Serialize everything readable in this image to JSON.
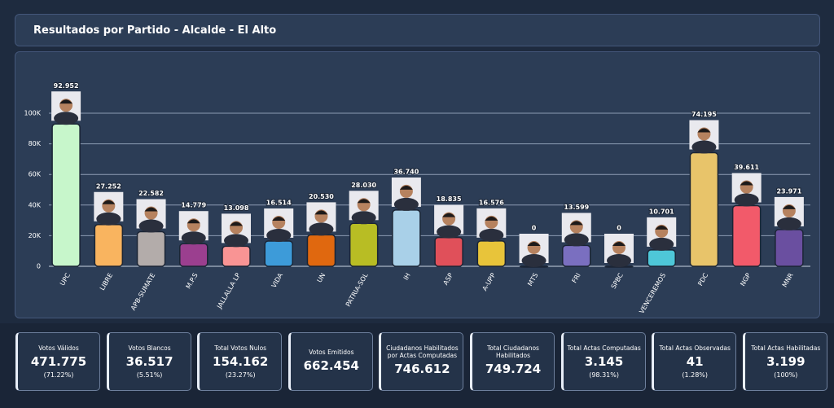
{
  "header": {
    "title": "Resultados por Partido - Alcalde - El Alto"
  },
  "chart_data": {
    "type": "bar",
    "categories": [
      "UPC",
      "LIBRE",
      "APB-SUMATE",
      "M.P.S",
      "JALLALLA LP",
      "VIDA",
      "UN",
      "PATRIA-SOL",
      "IH",
      "ASP",
      "A-UPP",
      "MTS",
      "FRI",
      "SPBC",
      "VENCEREMOS",
      "PDC",
      "NGP",
      "MNR"
    ],
    "values": [
      92952,
      27252,
      22582,
      14779,
      13098,
      16514,
      20530,
      28030,
      36740,
      18835,
      16576,
      0,
      13599,
      0,
      10701,
      74195,
      39611,
      23971
    ],
    "value_labels": [
      "92.952",
      "27.252",
      "22.582",
      "14.779",
      "13.098",
      "16.514",
      "20.530",
      "28.030",
      "36.740",
      "18.835",
      "16.576",
      "0",
      "13.599",
      "0",
      "10.701",
      "74.195",
      "39.611",
      "23.971"
    ],
    "colors": [
      "#c7f6cb",
      "#f9b45f",
      "#b3acaa",
      "#9b3f8f",
      "#f99494",
      "#3d9bd9",
      "#e0680f",
      "#b8bd24",
      "#a9d0e8",
      "#e0505a",
      "#e8c43a",
      "#8a8a8a",
      "#7a6fc0",
      "#8a8a8a",
      "#4ec7d8",
      "#e8c46a",
      "#f25a6a",
      "#6a4fa0"
    ],
    "ylim": [
      0,
      120000
    ],
    "yticks": [
      0,
      {
        "value": 20000,
        "label": "20K"
      },
      {
        "value": 40000,
        "label": "40K"
      },
      {
        "value": 60000,
        "label": "60K"
      },
      {
        "value": 80000,
        "label": "80K"
      },
      {
        "value": 100000,
        "label": "100K"
      }
    ],
    "grid": true
  },
  "cards": [
    {
      "title": "Votos Válidos",
      "value": "471.775",
      "pct": "(71.22%)"
    },
    {
      "title": "Votos Blancos",
      "value": "36.517",
      "pct": "(5.51%)"
    },
    {
      "title": "Total Votos Nulos",
      "value": "154.162",
      "pct": "(23.27%)"
    },
    {
      "title": "Votos Emitidos",
      "value": "662.454"
    },
    {
      "title": "Ciudadanos Habilitados por Actas Computadas",
      "value": "746.612"
    },
    {
      "title": "Total Ciudadanos Habilitados",
      "value": "749.724"
    },
    {
      "title": "Total Actas Computadas",
      "value": "3.145",
      "pct": "(98.31%)"
    },
    {
      "title": "Total Actas Observadas",
      "value": "41",
      "pct": "(1.28%)"
    },
    {
      "title": "Total Actas Habilitadas",
      "value": "3.199",
      "pct": "(100%)"
    }
  ]
}
